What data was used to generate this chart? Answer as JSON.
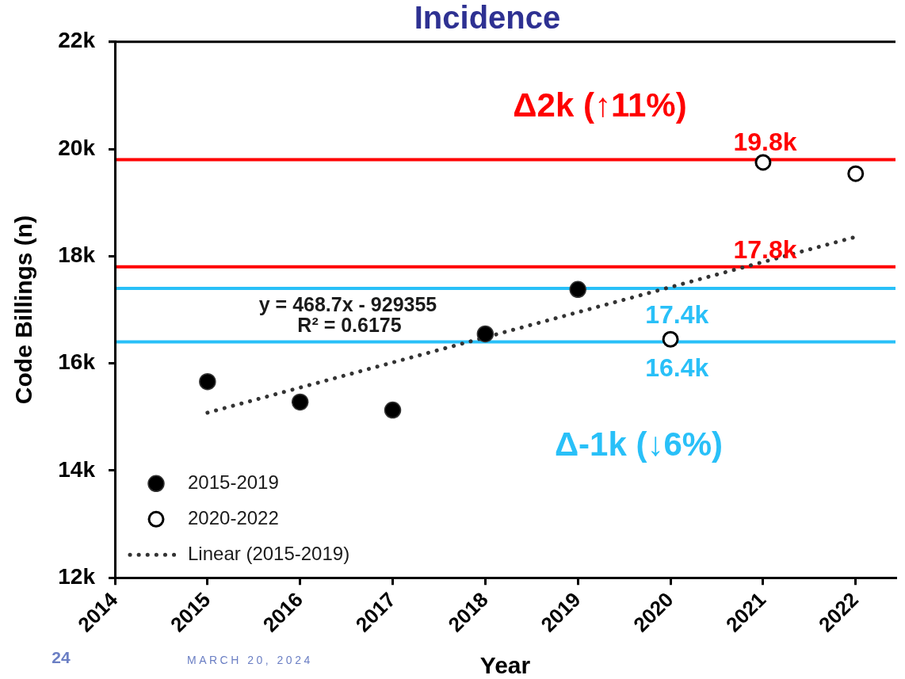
{
  "chart_data": {
    "type": "scatter",
    "title": "Incidence",
    "xlabel": "Year",
    "ylabel": "Code Billings (n)",
    "xlim": [
      2014,
      2022.43
    ],
    "xticks": [
      2014,
      2015,
      2016,
      2017,
      2018,
      2019,
      2020,
      2021,
      2022
    ],
    "ylim": [
      12000,
      22000
    ],
    "yticks": [
      {
        "value": 12000,
        "label": "12k"
      },
      {
        "value": 14000,
        "label": "14k"
      },
      {
        "value": 16000,
        "label": "16k"
      },
      {
        "value": 18000,
        "label": "18k"
      },
      {
        "value": 20000,
        "label": "20k"
      },
      {
        "value": 22000,
        "label": "22k"
      }
    ],
    "series": [
      {
        "name": "2015-2019",
        "type": "scatter",
        "color": "#000000",
        "x": [
          2015,
          2016,
          2017,
          2018,
          2019
        ],
        "values": [
          15660,
          15280,
          15130,
          16550,
          17380
        ]
      },
      {
        "name": "2020-2022",
        "type": "scatter",
        "color": "#000000",
        "x": [
          2020,
          2021,
          2022
        ],
        "values": [
          16450,
          19750,
          19540
        ]
      },
      {
        "name": "Linear (2015-2019)",
        "type": "line",
        "color": "#333333",
        "marker": "none",
        "line_style": "dotted",
        "x": [
          2015,
          2022
        ],
        "values": [
          15080,
          18360
        ]
      }
    ],
    "ref_lines": [
      {
        "axis": "y",
        "value": 19800,
        "label": "19.8k",
        "color": "#ff0000"
      },
      {
        "axis": "y",
        "value": 17800,
        "label": "17.8k",
        "color": "#ff0000"
      },
      {
        "axis": "y",
        "value": 17400,
        "label": "17.4k",
        "color": "#29c0f8"
      },
      {
        "axis": "y",
        "value": 16400,
        "label": "16.4k",
        "color": "#29c0f8"
      }
    ],
    "annotations": [
      "Δ2k (↑11%)",
      "Δ-1k (↓6%)",
      "y = 468.7x - 929355",
      "R² = 0.6175",
      "24",
      "MARCH 20, 2024"
    ],
    "marker": "circle",
    "grid": false,
    "legend": "bottom left"
  }
}
